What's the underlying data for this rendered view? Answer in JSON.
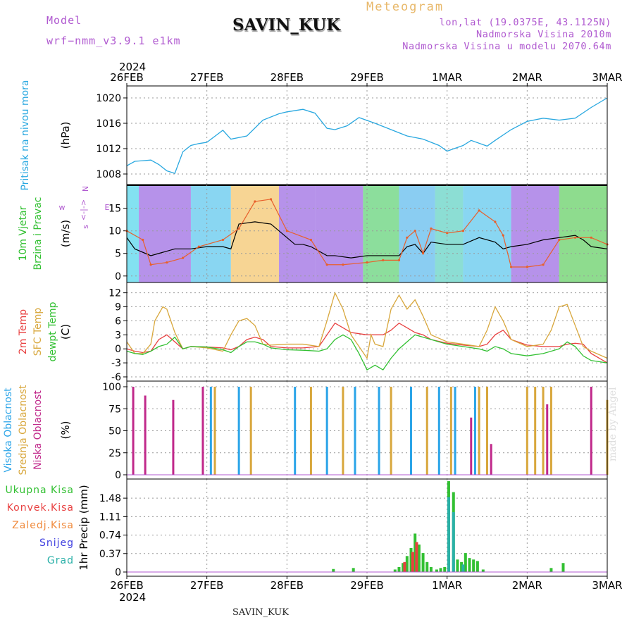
{
  "header": {
    "model_label": "Model",
    "model_name": "wrf−nmm_v3.9.1 e1km",
    "station": "SAVIN_KUK",
    "meteogram": "Meteogram",
    "coords": "lon,lat (19.0375E, 43.1125N)",
    "elevation": "Nadmorska Visina 2010m",
    "model_elevation": "Nadmorska Visina u modelu 2070.64m"
  },
  "footer": {
    "station": "SAVIN_KUK",
    "credit": "made by Angel"
  },
  "chart_data": [
    {
      "type": "line",
      "panel": "pressure",
      "ylabel": "(hPa)",
      "side_labels": [
        "Pritisak na nivou mora"
      ],
      "ylim": [
        1007,
        1021
      ],
      "yticks": [
        1008,
        1012,
        1016,
        1020
      ],
      "x_start_label": "2024",
      "x_tick_labels": [
        "26FEB",
        "27FEB",
        "28FEB",
        "29FEB",
        "1MAR",
        "2MAR",
        "3MAR"
      ],
      "x_days": [
        0,
        6
      ],
      "series": [
        {
          "color": "#29a8e0",
          "x": [
            0,
            0.1,
            0.2,
            0.3,
            0.4,
            0.5,
            0.6,
            0.7,
            0.8,
            0.9,
            1.0,
            1.2,
            1.3,
            1.5,
            1.7,
            1.9,
            2.0,
            2.2,
            2.35,
            2.5,
            2.6,
            2.75,
            2.9,
            3.1,
            3.3,
            3.5,
            3.7,
            3.9,
            4.0,
            4.2,
            4.3,
            4.5,
            4.6,
            4.8,
            5.0,
            5.2,
            5.4,
            5.6,
            5.8,
            6.0
          ],
          "y": [
            1009.3,
            1010.0,
            1010.1,
            1010.2,
            1009.5,
            1008.5,
            1008.1,
            1011.5,
            1012.5,
            1012.8,
            1013.0,
            1014.9,
            1013.5,
            1014.0,
            1016.5,
            1017.5,
            1017.8,
            1018.2,
            1017.6,
            1015.2,
            1015.0,
            1015.6,
            1016.9,
            1016.0,
            1015.0,
            1014.0,
            1013.5,
            1012.5,
            1011.6,
            1012.5,
            1013.3,
            1012.4,
            1013.3,
            1015.0,
            1016.3,
            1016.8,
            1016.5,
            1016.8,
            1018.5,
            1020.0
          ]
        }
      ]
    },
    {
      "type": "line",
      "panel": "wind",
      "ylabel": "(m/s)",
      "side_labels": [
        "10m Vjetar",
        "Brzina i Pravac"
      ],
      "direction_legend": [
        "w",
        "<-|->",
        "E",
        "s",
        "N"
      ],
      "ylim": [
        -0.5,
        19
      ],
      "yticks": [
        0,
        5,
        10,
        15
      ],
      "series": [
        {
          "name": "wind speed",
          "color": "#000000",
          "x": [
            0,
            0.1,
            0.3,
            0.4,
            0.5,
            0.6,
            0.8,
            1.0,
            1.2,
            1.3,
            1.4,
            1.6,
            1.8,
            2.0,
            2.1,
            2.2,
            2.3,
            2.5,
            2.6,
            2.8,
            3.0,
            3.2,
            3.4,
            3.5,
            3.6,
            3.7,
            3.8,
            4.0,
            4.2,
            4.4,
            4.6,
            4.7,
            4.8,
            5.0,
            5.2,
            5.4,
            5.6,
            5.7,
            5.8,
            6.0
          ],
          "y": [
            8.5,
            6.0,
            4.5,
            5.0,
            5.5,
            6.0,
            6.0,
            6.5,
            6.5,
            6.0,
            11.5,
            12.0,
            11.5,
            8.5,
            7.0,
            7.0,
            6.5,
            4.5,
            4.5,
            4.0,
            4.5,
            4.5,
            4.5,
            6.5,
            7.0,
            5.0,
            7.5,
            7.0,
            7.0,
            8.5,
            7.5,
            6.0,
            6.5,
            7.0,
            8.0,
            8.5,
            9.0,
            8.0,
            6.5,
            6.0
          ]
        },
        {
          "name": "wind gust",
          "color": "#e8602c",
          "x": [
            0,
            0.2,
            0.3,
            0.5,
            0.7,
            0.9,
            1.2,
            1.4,
            1.6,
            1.8,
            2.0,
            2.3,
            2.5,
            2.7,
            3.0,
            3.2,
            3.4,
            3.5,
            3.6,
            3.7,
            3.8,
            4.0,
            4.2,
            4.4,
            4.6,
            4.7,
            4.8,
            5.0,
            5.2,
            5.4,
            5.6,
            5.8,
            6.0
          ],
          "y": [
            10.0,
            8.0,
            2.5,
            3.0,
            4.0,
            6.5,
            8.0,
            10.5,
            16.5,
            17.0,
            10.0,
            8.0,
            2.5,
            2.5,
            3.0,
            3.5,
            3.5,
            8.5,
            10.0,
            5.0,
            10.5,
            9.5,
            10.0,
            14.5,
            12.0,
            9.0,
            2.0,
            2.0,
            2.5,
            8.0,
            8.5,
            8.5,
            7.0
          ]
        }
      ]
    },
    {
      "type": "line",
      "panel": "temperature",
      "ylabel": "(C)",
      "side_labels": [
        "2m Temp",
        "SFC Temp",
        "dewpt Temp"
      ],
      "ylim": [
        -6,
        13
      ],
      "yticks": [
        -6,
        -3,
        0,
        3,
        6,
        9,
        12
      ],
      "series": [
        {
          "name": "2m Temp",
          "color": "#e84040",
          "x": [
            0,
            0.1,
            0.2,
            0.3,
            0.4,
            0.5,
            0.6,
            0.7,
            0.8,
            1.0,
            1.2,
            1.3,
            1.4,
            1.5,
            1.6,
            1.7,
            1.8,
            2.0,
            2.2,
            2.4,
            2.5,
            2.6,
            2.7,
            2.8,
            3.0,
            3.2,
            3.3,
            3.4,
            3.5,
            3.6,
            3.7,
            3.8,
            4.0,
            4.2,
            4.4,
            4.5,
            4.6,
            4.7,
            4.8,
            5.0,
            5.2,
            5.3,
            5.4,
            5.5,
            5.6,
            5.7,
            5.8,
            6.0
          ],
          "y": [
            0.0,
            -0.5,
            -0.8,
            -0.5,
            2.0,
            3.0,
            1.5,
            0.0,
            0.5,
            0.4,
            0.2,
            -0.2,
            0.5,
            2.0,
            2.5,
            2.0,
            0.5,
            0.2,
            0.2,
            0.5,
            3.0,
            5.5,
            4.5,
            3.5,
            3.0,
            3.0,
            4.0,
            5.5,
            4.5,
            3.5,
            3.0,
            2.0,
            1.2,
            0.8,
            0.5,
            1.0,
            3.0,
            4.0,
            2.0,
            0.8,
            0.5,
            0.5,
            0.5,
            1.0,
            1.2,
            1.0,
            -1.0,
            -3.0
          ]
        },
        {
          "name": "SFC Temp",
          "color": "#d8a73c",
          "x": [
            0,
            0.1,
            0.2,
            0.3,
            0.35,
            0.45,
            0.5,
            0.6,
            0.7,
            0.8,
            1.0,
            1.2,
            1.3,
            1.4,
            1.5,
            1.6,
            1.7,
            1.8,
            2.0,
            2.2,
            2.4,
            2.5,
            2.6,
            2.7,
            2.8,
            3.0,
            3.05,
            3.1,
            3.2,
            3.3,
            3.4,
            3.5,
            3.6,
            3.7,
            3.8,
            4.0,
            4.2,
            4.4,
            4.5,
            4.6,
            4.7,
            4.8,
            5.0,
            5.2,
            5.3,
            5.4,
            5.5,
            5.6,
            5.7,
            5.8,
            6.0
          ],
          "y": [
            1.5,
            -1.0,
            -1.0,
            1.0,
            6.0,
            9.0,
            8.5,
            3.5,
            0.0,
            0.5,
            0.2,
            -0.5,
            3.0,
            6.0,
            6.5,
            5.0,
            1.0,
            0.8,
            1.0,
            1.0,
            0.5,
            6.0,
            12.0,
            8.5,
            3.0,
            -2.0,
            3.0,
            1.0,
            0.5,
            8.5,
            11.5,
            8.5,
            10.5,
            7.0,
            3.0,
            1.5,
            1.0,
            0.5,
            4.0,
            9.0,
            6.0,
            2.0,
            0.5,
            1.0,
            4.0,
            9.0,
            9.5,
            5.0,
            0.5,
            -0.5,
            -2.0
          ]
        },
        {
          "name": "dewpt Temp",
          "color": "#32c032",
          "x": [
            0,
            0.1,
            0.2,
            0.3,
            0.4,
            0.5,
            0.6,
            0.7,
            0.8,
            1.0,
            1.2,
            1.3,
            1.4,
            1.5,
            1.6,
            1.7,
            1.8,
            2.0,
            2.2,
            2.4,
            2.5,
            2.6,
            2.7,
            2.8,
            2.9,
            3.0,
            3.1,
            3.2,
            3.3,
            3.4,
            3.5,
            3.6,
            3.7,
            3.8,
            4.0,
            4.2,
            4.4,
            4.5,
            4.6,
            4.7,
            4.8,
            5.0,
            5.2,
            5.4,
            5.5,
            5.6,
            5.7,
            5.8,
            6.0
          ],
          "y": [
            -0.5,
            -1.0,
            -1.2,
            -0.5,
            0.5,
            1.0,
            2.5,
            0.0,
            0.5,
            0.4,
            -0.2,
            -0.8,
            0.5,
            1.5,
            1.5,
            1.0,
            0.2,
            -0.2,
            -0.3,
            -0.5,
            0.0,
            2.0,
            3.0,
            2.0,
            -1.0,
            -4.5,
            -3.5,
            -4.5,
            -2.0,
            0.0,
            1.5,
            3.0,
            2.5,
            2.0,
            1.0,
            0.5,
            0.0,
            -0.5,
            0.5,
            0.0,
            -1.0,
            -1.5,
            -1.0,
            0.0,
            1.5,
            0.5,
            -1.5,
            -2.5,
            -3.0
          ]
        }
      ]
    },
    {
      "type": "bar",
      "panel": "cloud",
      "ylabel": "(%)",
      "side_labels": [
        "Visoka Oblacnost",
        "Srednja Oblacnost",
        "Niska Oblacnost"
      ],
      "ylim": [
        0,
        100
      ],
      "yticks": [
        0,
        25,
        50,
        75,
        100
      ],
      "series": [
        {
          "name": "Visoka Oblacnost",
          "color": "#2aa4e8",
          "x": [
            1.05,
            1.4,
            2.1,
            2.5,
            2.85,
            3.15,
            3.55,
            3.9,
            4.1,
            4.35
          ],
          "values": [
            100,
            100,
            100,
            100,
            100,
            100,
            100,
            100,
            100,
            100
          ]
        },
        {
          "name": "Srednja Oblacnost",
          "color": "#d8a73c",
          "x": [
            1.1,
            1.55,
            2.3,
            2.7,
            3.3,
            3.75,
            4.05,
            4.4,
            4.5,
            5.0,
            5.1,
            5.2,
            5.3,
            6.0
          ],
          "values": [
            100,
            100,
            100,
            100,
            100,
            100,
            100,
            100,
            100,
            100,
            100,
            100,
            100,
            85
          ]
        },
        {
          "name": "Niska Oblacnost",
          "color": "#c0288a",
          "x": [
            0.08,
            0.23,
            0.58,
            0.95,
            4.3,
            4.55,
            5.25,
            5.8
          ],
          "values": [
            100,
            90,
            85,
            100,
            65,
            35,
            80,
            100
          ]
        }
      ]
    },
    {
      "type": "bar",
      "panel": "precipitation",
      "ylabel": "1hr Precip (mm)",
      "side_labels": [
        "Ukupna Kisa",
        "Konvek.Kisa",
        "Zaledj.Kisa",
        "Snijeg",
        "Grad"
      ],
      "ylim": [
        0,
        1.75
      ],
      "yticks": [
        0,
        0.37,
        0.74,
        1.11,
        1.48
      ],
      "series": [
        {
          "name": "Ukupna Kisa",
          "color": "#32c032",
          "x": [
            2.58,
            2.83,
            3.35,
            3.4,
            3.45,
            3.5,
            3.55,
            3.6,
            3.65,
            3.7,
            3.75,
            3.8,
            3.87,
            3.92,
            3.97,
            4.02,
            4.08,
            4.13,
            4.18,
            4.23,
            4.28,
            4.33,
            4.38,
            4.45,
            5.3,
            5.45
          ],
          "values": [
            0.06,
            0.08,
            0.05,
            0.1,
            0.18,
            0.32,
            0.48,
            0.77,
            0.55,
            0.38,
            0.2,
            0.1,
            0.05,
            0.08,
            0.1,
            1.82,
            1.6,
            0.25,
            0.2,
            0.38,
            0.28,
            0.25,
            0.22,
            0.05,
            0.08,
            0.18
          ]
        },
        {
          "name": "Konvek.Kisa",
          "color": "#e84040",
          "x": [
            3.47,
            3.57,
            3.62
          ],
          "values": [
            0.2,
            0.4,
            0.6
          ]
        },
        {
          "name": "Zaledj.Kisa",
          "color": "#f08a3c",
          "x": [],
          "values": []
        },
        {
          "name": "Snijeg",
          "color": "#4040e0",
          "x": [],
          "values": []
        },
        {
          "name": "Grad",
          "color": "#2ab0a8",
          "x": [
            4.02,
            4.08,
            4.2
          ],
          "values": [
            1.5,
            1.2,
            0.15
          ]
        }
      ]
    }
  ]
}
